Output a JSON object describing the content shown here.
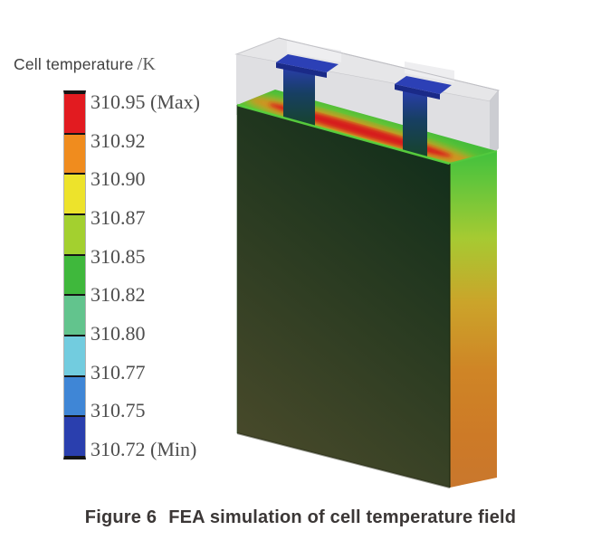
{
  "figure": {
    "caption_label": "Figure 6",
    "caption_text": "FEA simulation of cell temperature field"
  },
  "legend": {
    "title": "Cell temperature",
    "unit": "/K",
    "tick_labels": [
      "310.95 (Max)",
      "310.92",
      "310.90",
      "310.87",
      "310.85",
      "310.82",
      "310.80",
      "310.77",
      "310.75",
      "310.72 (Min)"
    ],
    "band_colors": [
      "#e21b20",
      "#f08c1e",
      "#ede32b",
      "#a3d02f",
      "#3fb83c",
      "#62c48d",
      "#72ccdf",
      "#3f86d6",
      "#2a3fae"
    ]
  },
  "model": {
    "type": "3D prismatic battery cell, FEA temperature contour render",
    "colors": {
      "casing_gray": "#dcdcdf",
      "casing_top_gray": "#e6e6e8",
      "casing_side_gray": "#cccdd2",
      "tab_blue": "#2c40b6",
      "tab_edge_blue": "#1a2a88",
      "hot_streak_red": "#d61b1b",
      "body_dark_green": "#1d381f",
      "body_olive": "#47492a",
      "side_edge_orange": "#cd7a27",
      "edge_highlight_green": "#59d13d"
    }
  },
  "chart_data": {
    "type": "heatmap",
    "title": "FEA simulation of cell temperature field",
    "colorbar_label": "Cell temperature /K",
    "unit": "K",
    "max": 310.95,
    "min": 310.72,
    "scale_ticks": [
      310.95,
      310.92,
      310.9,
      310.87,
      310.85,
      310.82,
      310.8,
      310.77,
      310.75,
      310.72
    ],
    "scale_band_colors": [
      "#e21b20",
      "#f08c1e",
      "#ede32b",
      "#a3d02f",
      "#3fb83c",
      "#62c48d",
      "#72ccdf",
      "#3f86d6",
      "#2a3fae"
    ],
    "observations": [
      "Hot streak at maximum ~310.95 K along the top edge of the jelly roll between the two tabs",
      "Right side face warm (orange ~310.90 K), warming toward the bottom right edge",
      "Tabs are coolest (blue, ~310.72 K minimum)",
      "Large front face is mid-range (dark green), translucent gray casing surrounds the top"
    ]
  }
}
